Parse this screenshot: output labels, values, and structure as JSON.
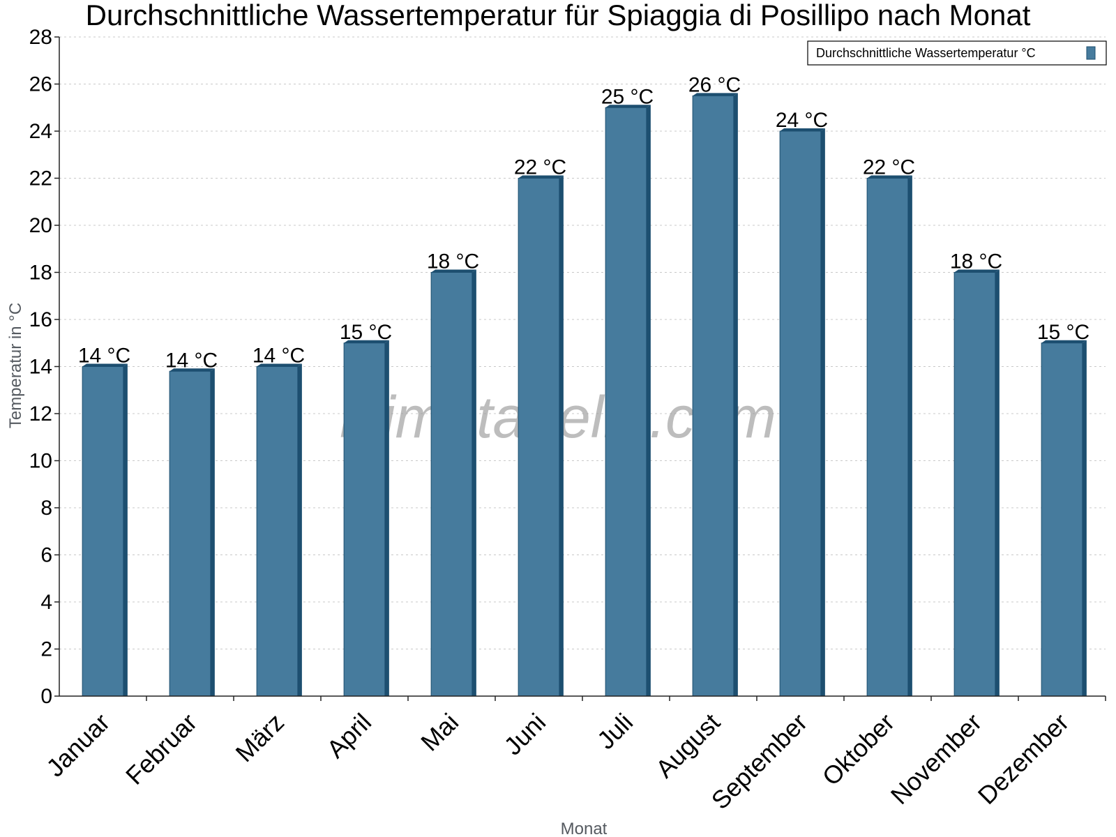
{
  "chart_data": {
    "type": "bar",
    "title": "Durchschnittliche Wassertemperatur für Spiaggia di Posillipo nach Monat",
    "xlabel": "Monat",
    "ylabel": "Temperatur in °C",
    "ylim": [
      0,
      28
    ],
    "yticks": [
      0,
      2,
      4,
      6,
      8,
      10,
      12,
      14,
      16,
      18,
      20,
      22,
      24,
      26,
      28
    ],
    "grid": true,
    "legend_position": "top-right",
    "categories": [
      "Januar",
      "Februar",
      "März",
      "April",
      "Mai",
      "Juni",
      "Juli",
      "August",
      "September",
      "Oktober",
      "November",
      "Dezember"
    ],
    "series": [
      {
        "name": "Durchschnittliche Wassertemperatur °C",
        "values": [
          14,
          13.8,
          14,
          15,
          18,
          22,
          25,
          25.5,
          24,
          22,
          18,
          15
        ],
        "labels": [
          "14 °C",
          "14 °C",
          "14 °C",
          "15 °C",
          "18 °C",
          "22 °C",
          "25 °C",
          "26 °C",
          "24 °C",
          "22 °C",
          "18 °C",
          "15 °C"
        ],
        "color": "#467b9d",
        "edge_color": "#1d4f70"
      }
    ],
    "watermark": "klimatabelle.com"
  }
}
